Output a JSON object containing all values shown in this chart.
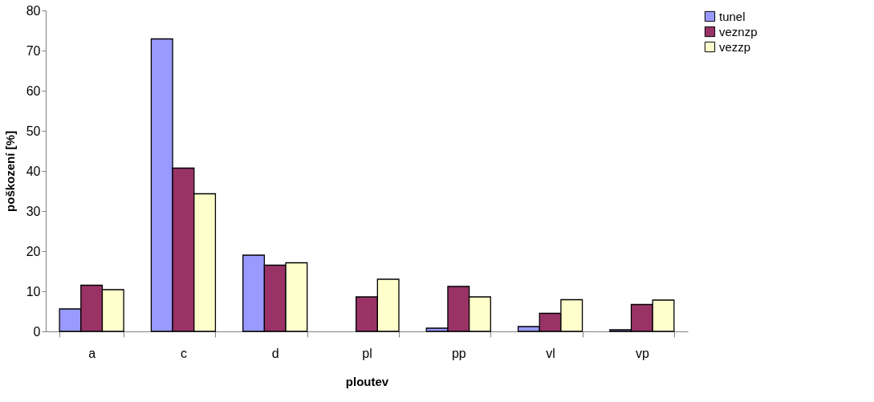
{
  "chart_data": {
    "type": "bar",
    "xlabel": "ploutev",
    "ylabel": "poškození  [%]",
    "categories": [
      "a",
      "c",
      "d",
      "pl",
      "pp",
      "vl",
      "vp"
    ],
    "series": [
      {
        "name": "tunel",
        "color": "#9999ff",
        "values": [
          5.6,
          72.9,
          19.0,
          null,
          0.8,
          1.2,
          0.4
        ]
      },
      {
        "name": "veznzp",
        "color": "#993366",
        "values": [
          11.5,
          40.7,
          16.5,
          8.6,
          11.2,
          4.5,
          6.7
        ]
      },
      {
        "name": "vezzp",
        "color": "#ffffcc",
        "values": [
          10.4,
          34.3,
          17.1,
          13.0,
          8.6,
          7.9,
          7.8
        ]
      }
    ],
    "ylim": [
      0,
      80
    ],
    "yticks": [
      0,
      10,
      20,
      30,
      40,
      50,
      60,
      70,
      80
    ],
    "grid": false,
    "legend": "right"
  }
}
